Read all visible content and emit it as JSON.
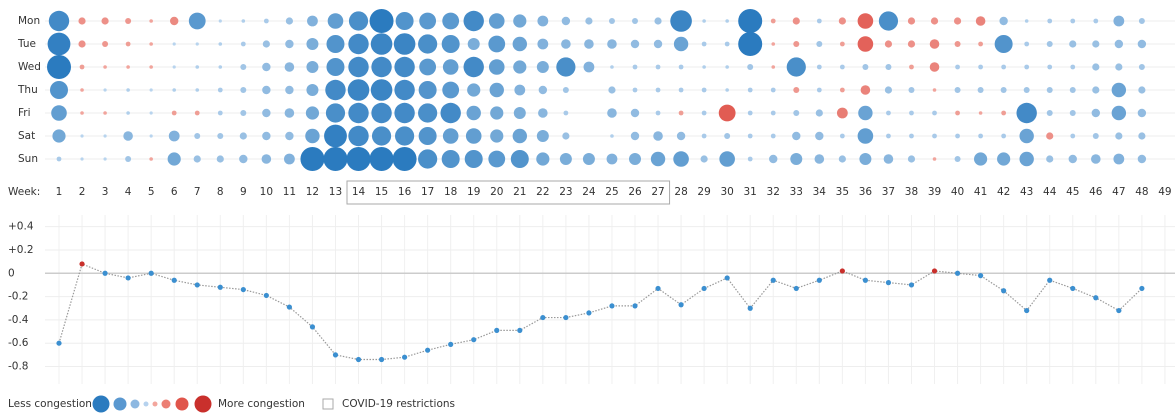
{
  "chart_data": [
    {
      "type": "bubble_grid",
      "xlabel": "Week:",
      "x": [
        1,
        2,
        3,
        4,
        5,
        6,
        7,
        8,
        9,
        10,
        11,
        12,
        13,
        14,
        15,
        16,
        17,
        18,
        19,
        20,
        21,
        22,
        23,
        24,
        25,
        26,
        27,
        28,
        29,
        30,
        31,
        32,
        33,
        34,
        35,
        36,
        37,
        38,
        39,
        40,
        41,
        42,
        43,
        44,
        45,
        46,
        47,
        48,
        49
      ],
      "colors": {
        "less": [
          "#c8def3",
          "#2b7bbf"
        ],
        "more": [
          "#f5b8b0",
          "#d9342b"
        ]
      },
      "highlight": {
        "label": "COVID-19 restrictions",
        "range": [
          14,
          27
        ]
      },
      "less_label": "Less congestion",
      "more_label": "More congestion",
      "series": [
        {
          "name": "Mon",
          "values": [
            -0.85,
            0.3,
            0.3,
            0.25,
            0.15,
            0.35,
            -0.7,
            -0.1,
            -0.15,
            -0.2,
            -0.3,
            -0.45,
            -0.65,
            -0.8,
            -1.0,
            -0.75,
            -0.7,
            -0.7,
            -0.85,
            -0.65,
            -0.55,
            -0.45,
            -0.35,
            -0.3,
            -0.25,
            -0.25,
            -0.3,
            -0.9,
            -0.15,
            -0.15,
            -1.0,
            0.2,
            0.3,
            -0.2,
            0.3,
            0.65,
            -0.8,
            0.3,
            0.3,
            0.3,
            0.4,
            -0.35,
            -0.15,
            -0.2,
            -0.2,
            -0.2,
            -0.45,
            -0.25,
            null
          ]
        },
        {
          "name": "Tue",
          "values": [
            -0.95,
            0.3,
            0.25,
            0.2,
            0.15,
            -0.1,
            -0.1,
            -0.15,
            -0.2,
            -0.3,
            -0.35,
            -0.5,
            -0.75,
            -0.85,
            -0.9,
            -0.9,
            -0.8,
            -0.75,
            -0.5,
            -0.7,
            -0.6,
            -0.45,
            -0.4,
            -0.4,
            -0.4,
            -0.35,
            -0.35,
            -0.6,
            -0.2,
            -0.2,
            -1.0,
            0.15,
            0.25,
            -0.25,
            0.2,
            0.65,
            0.3,
            0.3,
            0.4,
            0.25,
            0.2,
            -0.75,
            -0.2,
            -0.25,
            -0.3,
            -0.3,
            -0.35,
            -0.35,
            null
          ]
        },
        {
          "name": "Wed",
          "values": [
            -1.0,
            0.2,
            0.15,
            0.15,
            0.15,
            -0.1,
            -0.15,
            -0.15,
            -0.25,
            -0.35,
            -0.4,
            -0.5,
            -0.75,
            -0.85,
            -0.85,
            -0.85,
            -0.7,
            -0.65,
            -0.85,
            -0.65,
            -0.55,
            -0.5,
            -0.8,
            -0.45,
            -0.15,
            -0.2,
            -0.2,
            -0.2,
            -0.15,
            -0.15,
            -0.25,
            0.15,
            -0.8,
            -0.2,
            -0.2,
            -0.25,
            -0.25,
            0.2,
            0.4,
            -0.2,
            -0.2,
            -0.2,
            -0.2,
            -0.2,
            -0.2,
            -0.3,
            -0.3,
            -0.25,
            null
          ]
        },
        {
          "name": "Thu",
          "values": [
            -0.75,
            0.15,
            -0.1,
            -0.15,
            -0.1,
            -0.15,
            -0.15,
            -0.2,
            -0.25,
            -0.35,
            -0.35,
            -0.5,
            -0.85,
            -0.9,
            -0.9,
            -0.85,
            -0.75,
            -0.7,
            -0.55,
            -0.6,
            -0.45,
            -0.35,
            -0.25,
            null,
            -0.3,
            -0.2,
            -0.2,
            -0.2,
            -0.2,
            -0.15,
            -0.2,
            -0.2,
            0.25,
            -0.2,
            0.2,
            0.4,
            -0.3,
            -0.25,
            0.15,
            -0.25,
            -0.25,
            -0.25,
            -0.25,
            -0.25,
            -0.25,
            -0.3,
            -0.6,
            -0.3,
            null
          ]
        },
        {
          "name": "Fri",
          "values": [
            -0.65,
            0.15,
            0.15,
            -0.15,
            -0.1,
            0.2,
            0.2,
            -0.2,
            -0.25,
            -0.35,
            -0.4,
            -0.55,
            -0.8,
            -0.85,
            -0.85,
            -0.85,
            -0.8,
            -0.85,
            -0.6,
            -0.55,
            -0.5,
            -0.4,
            -0.2,
            null,
            -0.4,
            -0.35,
            -0.2,
            0.2,
            -0.2,
            0.7,
            -0.2,
            -0.2,
            -0.25,
            -0.3,
            0.45,
            -0.6,
            -0.2,
            -0.2,
            -0.2,
            0.2,
            0.15,
            0.2,
            -0.85,
            -0.25,
            -0.25,
            -0.35,
            -0.6,
            -0.35,
            null
          ]
        },
        {
          "name": "Sat",
          "values": [
            -0.55,
            -0.1,
            -0.1,
            -0.4,
            -0.1,
            -0.45,
            -0.25,
            -0.25,
            -0.3,
            -0.35,
            -0.35,
            -0.6,
            -0.95,
            -0.85,
            -0.8,
            -0.8,
            -0.75,
            -0.65,
            -0.65,
            -0.55,
            -0.6,
            -0.5,
            -0.3,
            null,
            -0.15,
            -0.35,
            -0.4,
            -0.35,
            -0.2,
            -0.25,
            -0.2,
            -0.2,
            -0.35,
            -0.35,
            -0.2,
            -0.65,
            -0.2,
            -0.2,
            -0.2,
            -0.2,
            -0.2,
            -0.2,
            -0.6,
            0.3,
            -0.2,
            -0.25,
            -0.3,
            -0.3,
            null
          ]
        },
        {
          "name": "Sun",
          "values": [
            -0.2,
            -0.1,
            -0.1,
            -0.25,
            0.15,
            -0.55,
            -0.3,
            -0.3,
            -0.35,
            -0.4,
            -0.45,
            -1.0,
            -1.0,
            -1.0,
            -1.0,
            -1.0,
            -0.8,
            -0.75,
            -0.75,
            -0.7,
            -0.75,
            -0.55,
            -0.5,
            -0.5,
            -0.45,
            -0.5,
            -0.6,
            -0.65,
            -0.3,
            -0.65,
            -0.2,
            -0.35,
            -0.5,
            -0.4,
            -0.3,
            -0.5,
            -0.4,
            -0.3,
            0.15,
            -0.25,
            -0.55,
            -0.55,
            -0.6,
            -0.3,
            -0.35,
            -0.4,
            -0.45,
            -0.35,
            null
          ]
        }
      ]
    },
    {
      "type": "line",
      "x": [
        1,
        2,
        3,
        4,
        5,
        6,
        7,
        8,
        9,
        10,
        11,
        12,
        13,
        14,
        15,
        16,
        17,
        18,
        19,
        20,
        21,
        22,
        23,
        24,
        25,
        26,
        27,
        28,
        29,
        30,
        31,
        32,
        33,
        34,
        35,
        36,
        37,
        38,
        39,
        40,
        41,
        42,
        43,
        44,
        45,
        46,
        47,
        48
      ],
      "values": [
        -0.6,
        0.08,
        0.0,
        -0.04,
        0.0,
        -0.06,
        -0.1,
        -0.12,
        -0.14,
        -0.19,
        -0.29,
        -0.46,
        -0.7,
        -0.74,
        -0.74,
        -0.72,
        -0.66,
        -0.61,
        -0.57,
        -0.49,
        -0.49,
        -0.38,
        -0.38,
        -0.34,
        -0.28,
        -0.28,
        -0.13,
        -0.27,
        -0.13,
        -0.04,
        -0.3,
        -0.06,
        -0.13,
        -0.06,
        0.02,
        -0.06,
        -0.08,
        -0.1,
        0.02,
        0.0,
        -0.02,
        -0.15,
        -0.32,
        -0.06,
        -0.13,
        -0.21,
        -0.32,
        -0.13
      ],
      "colors": {
        "less": "#3b8fd0",
        "more": "#c9302c",
        "line": "#999999"
      },
      "ylim": [
        -0.95,
        0.5
      ],
      "yticks": [
        {
          "value": 0.4,
          "label": "+0.4"
        },
        {
          "value": 0.2,
          "label": "+0.2"
        },
        0,
        -0.2,
        -0.4,
        -0.6,
        -0.8
      ],
      "grid": true
    }
  ]
}
